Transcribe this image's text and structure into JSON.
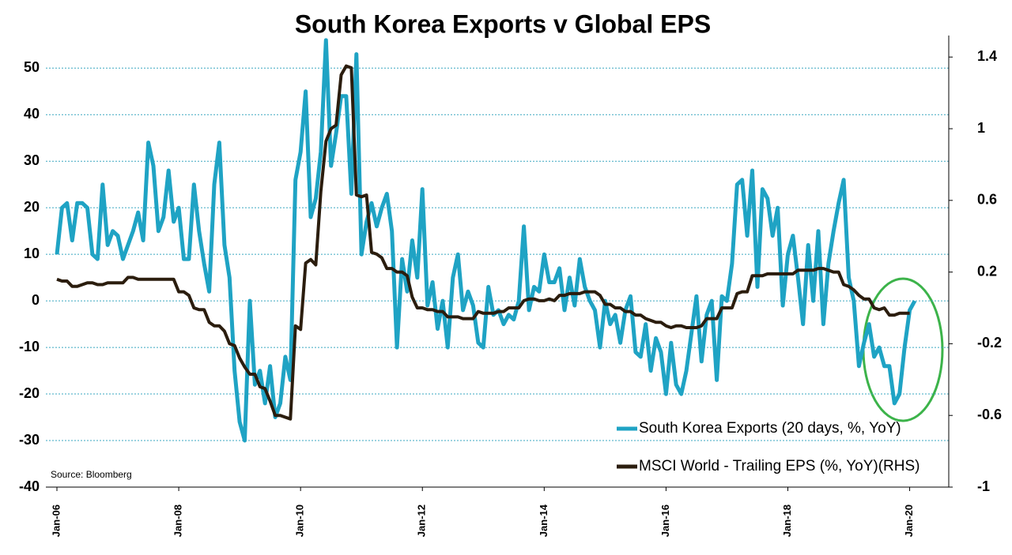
{
  "chart_data": {
    "type": "line",
    "title": "South Korea Exports v Global EPS",
    "annotation": "Source: Bloomberg",
    "categories": [
      "Jan-06",
      null,
      null,
      null,
      null,
      null,
      null,
      null,
      null,
      null,
      null,
      null,
      null,
      null,
      null,
      null,
      null,
      null,
      null,
      null,
      null,
      null,
      null,
      null,
      "Jan-08",
      null,
      null,
      null,
      null,
      null,
      null,
      null,
      null,
      null,
      null,
      null,
      null,
      null,
      null,
      null,
      null,
      null,
      null,
      null,
      null,
      null,
      null,
      null,
      "Jan-10",
      null,
      null,
      null,
      null,
      null,
      null,
      null,
      null,
      null,
      null,
      null,
      null,
      null,
      null,
      null,
      null,
      null,
      null,
      null,
      null,
      null,
      null,
      null,
      "Jan-12",
      null,
      null,
      null,
      null,
      null,
      null,
      null,
      null,
      null,
      null,
      null,
      null,
      null,
      null,
      null,
      null,
      null,
      null,
      null,
      null,
      null,
      null,
      null,
      "Jan-14",
      null,
      null,
      null,
      null,
      null,
      null,
      null,
      null,
      null,
      null,
      null,
      null,
      null,
      null,
      null,
      null,
      null,
      null,
      null,
      null,
      null,
      null,
      null,
      "Jan-16",
      null,
      null,
      null,
      null,
      null,
      null,
      null,
      null,
      null,
      null,
      null,
      null,
      null,
      null,
      null,
      null,
      null,
      null,
      null,
      null,
      null,
      null,
      null,
      "Jan-18",
      null,
      null,
      null,
      null,
      null,
      null,
      null,
      null,
      null,
      null,
      null,
      null,
      null,
      null,
      null,
      null,
      null,
      null,
      null,
      null,
      null,
      null,
      null,
      "Jan-20",
      null
    ],
    "series": [
      {
        "name": "South Korea Exports (20 days, %, YoY)",
        "color": "#1fa3c4",
        "axis": "y",
        "values": [
          10,
          20,
          21,
          13,
          21,
          21,
          20,
          10,
          9,
          25,
          12,
          15,
          14,
          9,
          12,
          15,
          19,
          13,
          34,
          29,
          15,
          18,
          28,
          17,
          20,
          9,
          9,
          25,
          15,
          8,
          2,
          25,
          34,
          12,
          5,
          -15,
          -26,
          -30,
          0,
          -18,
          -15,
          -22,
          -14,
          -25,
          -22,
          -12,
          -17,
          26,
          32,
          45,
          18,
          22,
          32,
          56,
          29,
          36,
          44,
          44,
          23,
          53,
          10,
          17,
          21,
          16,
          20,
          23,
          15,
          -10,
          9,
          2,
          13,
          5,
          24,
          -1,
          4,
          -6,
          0,
          -10,
          5,
          10,
          -2,
          2,
          -1,
          -9,
          -10,
          3,
          -3,
          -2,
          -5,
          -3,
          -4,
          0,
          16,
          -2,
          3,
          2,
          10,
          4,
          4,
          7,
          -2,
          5,
          -1,
          9,
          3,
          0,
          -2,
          -10,
          0,
          -5,
          -3,
          -9,
          -2,
          1,
          -11,
          -12,
          -5,
          -15,
          -8,
          -11,
          -20,
          -9,
          -18,
          -20,
          -15,
          -7,
          1,
          -13,
          -3,
          0,
          -17,
          1,
          0,
          8,
          25,
          26,
          14,
          28,
          3,
          24,
          22,
          14,
          20,
          -1,
          10,
          14,
          5,
          -5,
          12,
          0,
          15,
          -5,
          8,
          15,
          21,
          26,
          5,
          0,
          -14,
          -9,
          -5,
          -12,
          -10,
          -14,
          -14,
          -22,
          -20,
          -10,
          -2,
          0
        ]
      },
      {
        "name": "MSCI World - Trailing EPS (%, YoY)(RHS)",
        "color": "#2b1d0e",
        "axis": "y2",
        "values": [
          0.16,
          0.15,
          0.15,
          0.12,
          0.12,
          0.13,
          0.14,
          0.14,
          0.13,
          0.13,
          0.14,
          0.14,
          0.14,
          0.14,
          0.17,
          0.17,
          0.16,
          0.16,
          0.16,
          0.16,
          0.16,
          0.16,
          0.16,
          0.16,
          0.09,
          0.09,
          0.07,
          0.0,
          -0.01,
          -0.01,
          -0.08,
          -0.1,
          -0.1,
          -0.13,
          -0.2,
          -0.21,
          -0.28,
          -0.33,
          -0.37,
          -0.37,
          -0.44,
          -0.45,
          -0.52,
          -0.6,
          -0.6,
          -0.61,
          -0.62,
          -0.1,
          -0.12,
          0.25,
          0.27,
          0.24,
          0.65,
          0.93,
          1.0,
          1.02,
          1.3,
          1.35,
          1.34,
          0.63,
          0.62,
          0.63,
          0.31,
          0.3,
          0.28,
          0.22,
          0.22,
          0.2,
          0.2,
          0.18,
          0.06,
          0.0,
          0.0,
          -0.01,
          -0.01,
          -0.02,
          -0.02,
          -0.05,
          -0.05,
          -0.05,
          -0.06,
          -0.06,
          -0.06,
          -0.02,
          -0.03,
          -0.03,
          -0.03,
          -0.02,
          -0.02,
          0.0,
          0.0,
          0.0,
          0.04,
          0.05,
          0.05,
          0.04,
          0.04,
          0.05,
          0.04,
          0.07,
          0.07,
          0.08,
          0.08,
          0.08,
          0.09,
          0.09,
          0.09,
          0.07,
          0.02,
          0.02,
          0.0,
          0.0,
          -0.02,
          -0.02,
          -0.04,
          -0.04,
          -0.06,
          -0.07,
          -0.08,
          -0.08,
          -0.1,
          -0.11,
          -0.1,
          -0.1,
          -0.11,
          -0.11,
          -0.11,
          -0.1,
          -0.06,
          -0.06,
          -0.06,
          0.0,
          0.0,
          0.0,
          0.08,
          0.09,
          0.09,
          0.18,
          0.18,
          0.18,
          0.19,
          0.19,
          0.19,
          0.19,
          0.19,
          0.19,
          0.21,
          0.21,
          0.21,
          0.21,
          0.22,
          0.22,
          0.21,
          0.2,
          0.2,
          0.13,
          0.12,
          0.1,
          0.07,
          0.05,
          0.05,
          0.0,
          -0.01,
          0.0,
          -0.04,
          -0.04,
          -0.03,
          -0.03,
          -0.03,
          null
        ]
      }
    ],
    "ylim": [
      -40,
      57
    ],
    "yticks": [
      -40,
      -30,
      -20,
      -10,
      0,
      10,
      20,
      30,
      40,
      50
    ],
    "y2lim": [
      -1,
      1.52
    ],
    "y2ticks": [
      -1,
      -0.6,
      -0.2,
      0.2,
      0.6,
      1,
      1.4
    ],
    "grid": true,
    "legend": "lower right"
  }
}
